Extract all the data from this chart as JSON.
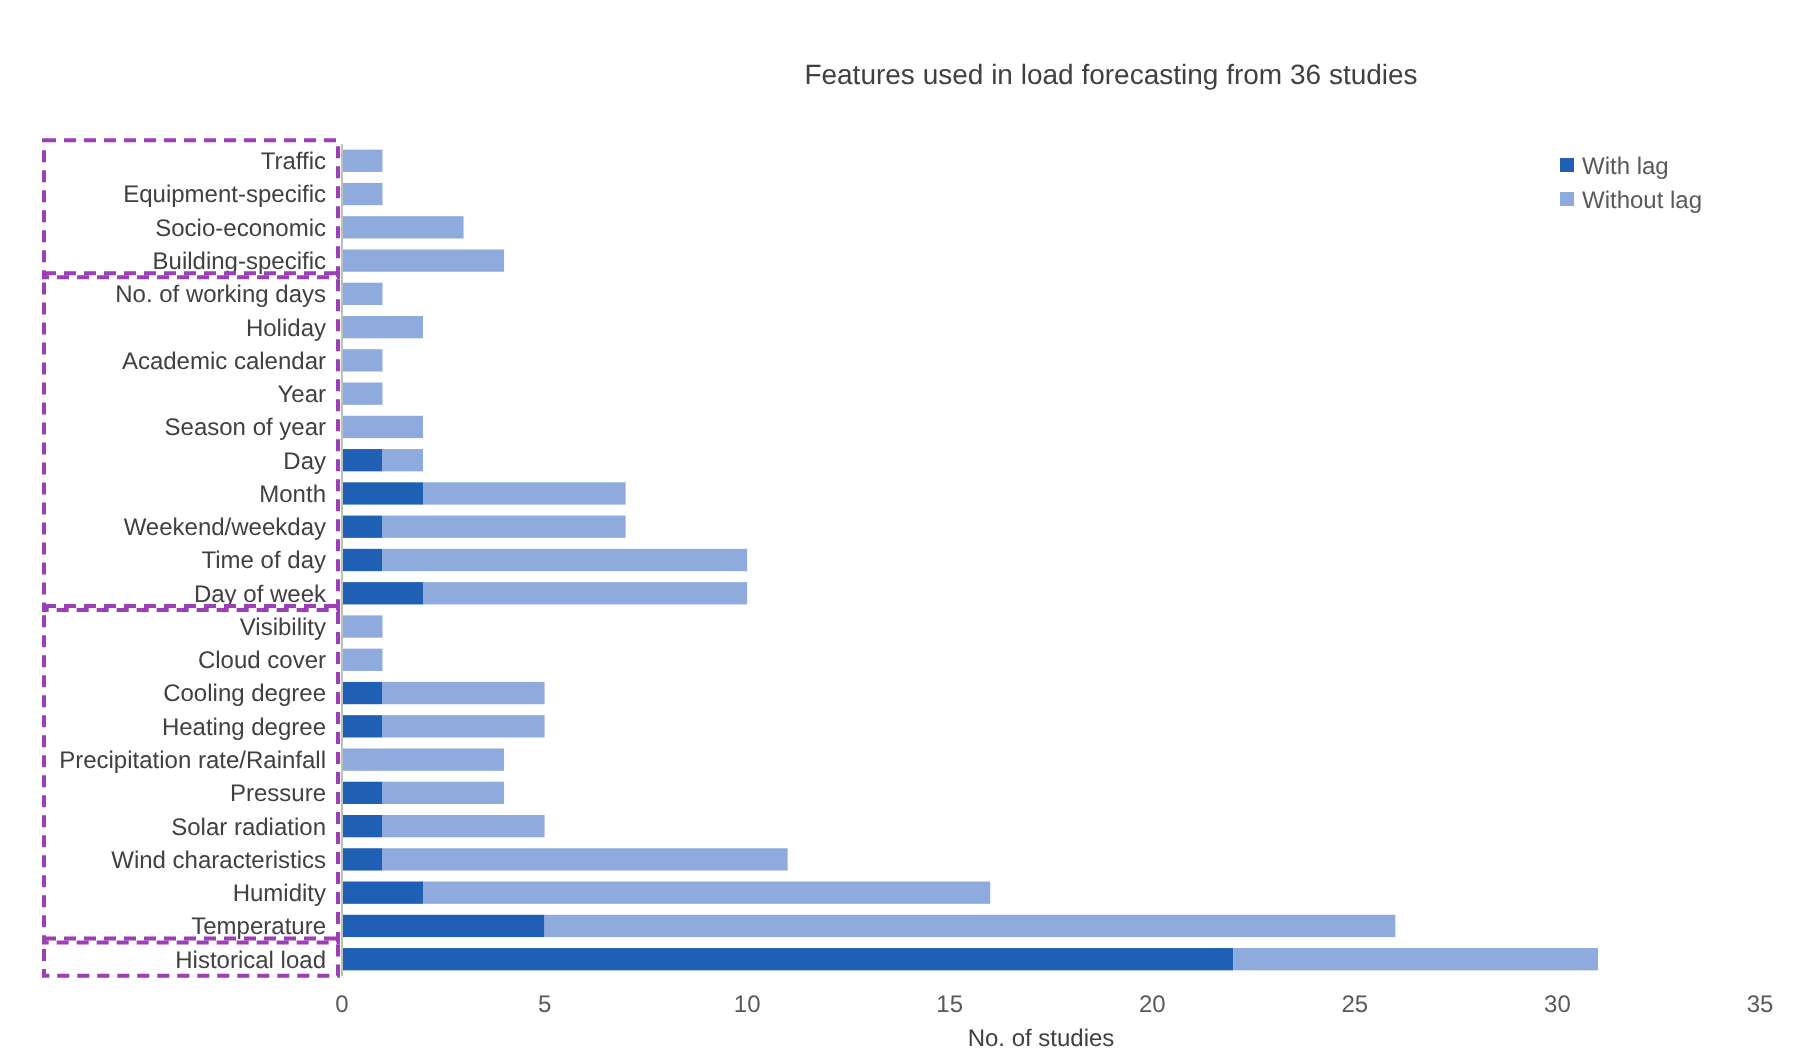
{
  "chart_data": {
    "type": "bar",
    "orientation": "horizontal",
    "stacked": true,
    "title": "Features used in load forecasting from 36 studies",
    "xlabel": "No. of studies",
    "categories": [
      "Traffic",
      "Equipment-specific",
      "Socio-economic",
      "Building-specific",
      "No. of working days",
      "Holiday",
      "Academic calendar",
      "Year",
      "Season of year",
      "Day",
      "Month",
      "Weekend/weekday",
      "Time of day",
      "Day of week",
      "Visibility",
      "Cloud cover",
      "Cooling degree",
      "Heating degree",
      "Precipitation rate/Rainfall",
      "Pressure",
      "Solar radiation",
      "Wind characteristics",
      "Humidity",
      "Temperature",
      "Historical load"
    ],
    "series": [
      {
        "name": "With lag",
        "color": "#1f5fb4",
        "values": [
          0,
          0,
          0,
          0,
          0,
          0,
          0,
          0,
          0,
          1,
          2,
          1,
          1,
          2,
          0,
          0,
          1,
          1,
          0,
          1,
          1,
          1,
          2,
          5,
          22
        ]
      },
      {
        "name": "Without lag",
        "color": "#8faadc",
        "values": [
          1,
          1,
          3,
          4,
          1,
          2,
          1,
          1,
          2,
          1,
          5,
          6,
          9,
          8,
          1,
          1,
          4,
          4,
          4,
          3,
          4,
          10,
          14,
          21,
          9
        ]
      }
    ],
    "xlim": [
      0,
      35
    ],
    "xticks": [
      0,
      5,
      10,
      15,
      20,
      25,
      30,
      35
    ],
    "grid": false,
    "legend": "top right"
  }
}
